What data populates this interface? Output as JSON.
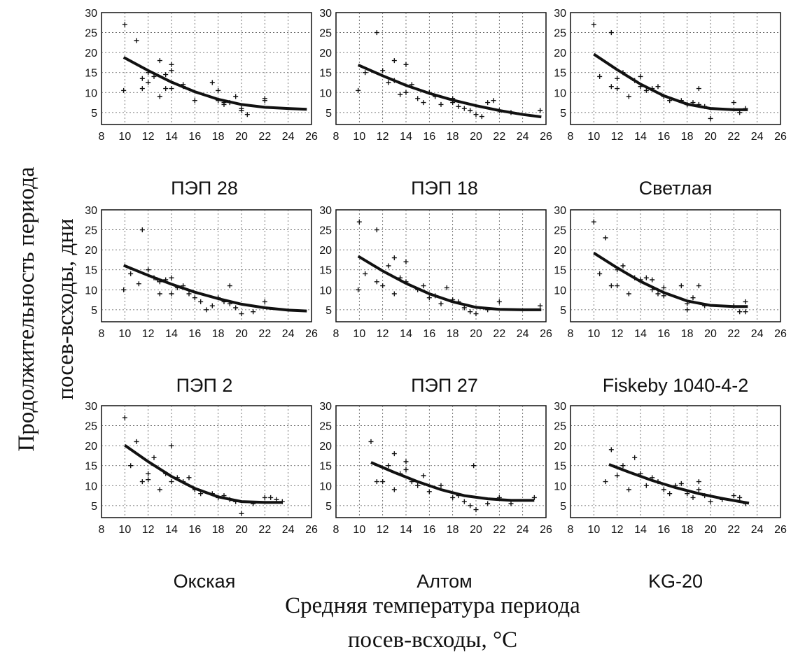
{
  "figure": {
    "xlabel_line1": "Средняя температура периода",
    "xlabel_line2": "посев-всходы, °C",
    "ylabel_line1": "Продолжительность периода",
    "ylabel_line2": "посев-всходы, дни"
  },
  "chart_data": [
    {
      "type": "scatter",
      "title": "ПЭП 28",
      "x_ticks": [
        8,
        10,
        12,
        14,
        16,
        18,
        20,
        22,
        24,
        26
      ],
      "y_ticks": [
        5,
        10,
        15,
        20,
        25,
        30
      ],
      "xlim": [
        8,
        26
      ],
      "ylim": [
        2,
        30
      ],
      "grid": true,
      "points": [
        [
          9.9,
          10.5
        ],
        [
          10,
          27
        ],
        [
          11,
          23
        ],
        [
          11.5,
          11
        ],
        [
          11.5,
          13.5
        ],
        [
          12,
          15
        ],
        [
          12,
          12.5
        ],
        [
          12.5,
          14
        ],
        [
          13,
          9
        ],
        [
          13,
          18
        ],
        [
          13.5,
          11
        ],
        [
          13.5,
          14.5
        ],
        [
          14,
          15.5
        ],
        [
          14,
          17
        ],
        [
          14,
          11
        ],
        [
          15,
          12
        ],
        [
          15,
          11.5
        ],
        [
          16,
          8
        ],
        [
          17.5,
          12.5
        ],
        [
          18,
          10.5
        ],
        [
          18,
          8
        ],
        [
          18.5,
          7.5
        ],
        [
          18.5,
          7
        ],
        [
          19,
          7.5
        ],
        [
          19.5,
          9
        ],
        [
          20,
          6
        ],
        [
          20,
          5.5
        ],
        [
          20.5,
          4.5
        ],
        [
          22,
          8.5
        ],
        [
          22,
          8
        ]
      ],
      "fit": [
        [
          9.9,
          18.8
        ],
        [
          12,
          15.5
        ],
        [
          14,
          12.6
        ],
        [
          16,
          10.2
        ],
        [
          18,
          8.3
        ],
        [
          20,
          7
        ],
        [
          22,
          6.3
        ],
        [
          24,
          6
        ],
        [
          25.6,
          5.8
        ]
      ]
    },
    {
      "type": "scatter",
      "title": "ПЭП 18",
      "x_ticks": [
        8,
        10,
        12,
        14,
        16,
        18,
        20,
        22,
        24,
        26
      ],
      "y_ticks": [
        5,
        10,
        15,
        20,
        25,
        30
      ],
      "xlim": [
        8,
        26
      ],
      "ylim": [
        2,
        30
      ],
      "grid": true,
      "points": [
        [
          9.9,
          10.5
        ],
        [
          10.5,
          15
        ],
        [
          11.5,
          25
        ],
        [
          12,
          15.5
        ],
        [
          12.5,
          12.5
        ],
        [
          13,
          13
        ],
        [
          13,
          18
        ],
        [
          13.5,
          9.5
        ],
        [
          14,
          17
        ],
        [
          14,
          10
        ],
        [
          14.5,
          12
        ],
        [
          15,
          8.5
        ],
        [
          15.5,
          7.5
        ],
        [
          16,
          10
        ],
        [
          16.5,
          9
        ],
        [
          17,
          7
        ],
        [
          18,
          8.5
        ],
        [
          18,
          7.5
        ],
        [
          18.5,
          6.5
        ],
        [
          19,
          6
        ],
        [
          19.5,
          5.5
        ],
        [
          20,
          4.5
        ],
        [
          20.5,
          4
        ],
        [
          21,
          7.5
        ],
        [
          21.5,
          8
        ],
        [
          22,
          5.5
        ],
        [
          23,
          5
        ],
        [
          25.5,
          5.5
        ]
      ],
      "fit": [
        [
          9.9,
          16.9
        ],
        [
          12,
          14.2
        ],
        [
          14,
          11.8
        ],
        [
          16,
          9.8
        ],
        [
          18,
          8.1
        ],
        [
          20,
          6.7
        ],
        [
          22,
          5.5
        ],
        [
          24,
          4.5
        ],
        [
          25.6,
          3.9
        ]
      ]
    },
    {
      "type": "scatter",
      "title": "Светлая",
      "x_ticks": [
        8,
        10,
        12,
        14,
        16,
        18,
        20,
        22,
        24,
        26
      ],
      "y_ticks": [
        5,
        10,
        15,
        20,
        25,
        30
      ],
      "xlim": [
        8,
        26
      ],
      "ylim": [
        2,
        30
      ],
      "grid": true,
      "points": [
        [
          10,
          27
        ],
        [
          10.5,
          14
        ],
        [
          11.5,
          25
        ],
        [
          11.5,
          11.5
        ],
        [
          12,
          11
        ],
        [
          12,
          13.5
        ],
        [
          12.5,
          15
        ],
        [
          13,
          9
        ],
        [
          13.5,
          13
        ],
        [
          14,
          14
        ],
        [
          14,
          11.5
        ],
        [
          14.5,
          10.5
        ],
        [
          15,
          11
        ],
        [
          15.5,
          11.5
        ],
        [
          16,
          9
        ],
        [
          16.5,
          8
        ],
        [
          17.5,
          8
        ],
        [
          18,
          7
        ],
        [
          18.5,
          7.5
        ],
        [
          19,
          11
        ],
        [
          19,
          7
        ],
        [
          19.5,
          6.5
        ],
        [
          20,
          3.5
        ],
        [
          22,
          7.5
        ],
        [
          22.5,
          5
        ],
        [
          23,
          6
        ]
      ],
      "fit": [
        [
          10,
          19.6
        ],
        [
          12,
          15.7
        ],
        [
          14,
          12.1
        ],
        [
          16,
          9.2
        ],
        [
          18,
          7.1
        ],
        [
          20,
          6
        ],
        [
          22,
          5.7
        ],
        [
          23.2,
          5.7
        ]
      ]
    },
    {
      "type": "scatter",
      "title": "ПЭП 2",
      "x_ticks": [
        8,
        10,
        12,
        14,
        16,
        18,
        20,
        22,
        24,
        26
      ],
      "y_ticks": [
        5,
        10,
        15,
        20,
        25,
        30
      ],
      "xlim": [
        8,
        26
      ],
      "ylim": [
        2,
        30
      ],
      "grid": true,
      "points": [
        [
          9.9,
          10
        ],
        [
          10.5,
          14
        ],
        [
          11.2,
          11.5
        ],
        [
          11.5,
          25
        ],
        [
          12,
          15
        ],
        [
          12.5,
          13
        ],
        [
          12.8,
          12.5
        ],
        [
          13,
          9
        ],
        [
          13,
          12
        ],
        [
          13.5,
          12.5
        ],
        [
          14,
          13
        ],
        [
          14,
          9
        ],
        [
          14.5,
          10.5
        ],
        [
          15,
          11
        ],
        [
          15.5,
          9
        ],
        [
          16,
          8
        ],
        [
          16.5,
          7
        ],
        [
          17,
          5
        ],
        [
          17.5,
          6
        ],
        [
          18,
          8
        ],
        [
          18.5,
          7
        ],
        [
          19,
          6.5
        ],
        [
          19,
          11
        ],
        [
          19.5,
          5.5
        ],
        [
          20,
          4
        ],
        [
          21,
          4.5
        ],
        [
          22,
          7
        ]
      ],
      "fit": [
        [
          9.9,
          16.1
        ],
        [
          12,
          13.6
        ],
        [
          14,
          11.4
        ],
        [
          16,
          9.4
        ],
        [
          18,
          7.8
        ],
        [
          20,
          6.4
        ],
        [
          22,
          5.5
        ],
        [
          24,
          4.9
        ],
        [
          25.6,
          4.7
        ]
      ]
    },
    {
      "type": "scatter",
      "title": "ПЭП 27",
      "x_ticks": [
        8,
        10,
        12,
        14,
        16,
        18,
        20,
        22,
        24,
        26
      ],
      "y_ticks": [
        5,
        10,
        15,
        20,
        25,
        30
      ],
      "xlim": [
        8,
        26
      ],
      "ylim": [
        2,
        30
      ],
      "grid": true,
      "points": [
        [
          9.9,
          10
        ],
        [
          10,
          27
        ],
        [
          10.5,
          14
        ],
        [
          11.5,
          25
        ],
        [
          11.5,
          12
        ],
        [
          12,
          11
        ],
        [
          12.5,
          16
        ],
        [
          13,
          18
        ],
        [
          13,
          9
        ],
        [
          13.5,
          13
        ],
        [
          14,
          17
        ],
        [
          14,
          12
        ],
        [
          15,
          10
        ],
        [
          15.5,
          11
        ],
        [
          16,
          8
        ],
        [
          16.5,
          8.5
        ],
        [
          17,
          6.5
        ],
        [
          17.5,
          10.5
        ],
        [
          18,
          7.5
        ],
        [
          18.5,
          7
        ],
        [
          19,
          5.5
        ],
        [
          19.5,
          4.5
        ],
        [
          20,
          4
        ],
        [
          21,
          5
        ],
        [
          22,
          7
        ],
        [
          25.5,
          6
        ]
      ],
      "fit": [
        [
          9.9,
          18.4
        ],
        [
          12,
          14.7
        ],
        [
          14,
          11.6
        ],
        [
          16,
          9
        ],
        [
          18,
          7
        ],
        [
          20,
          5.6
        ],
        [
          22,
          5.1
        ],
        [
          24,
          5
        ],
        [
          25.6,
          5
        ]
      ]
    },
    {
      "type": "scatter",
      "title": "Fiskeby 1040-4-2",
      "x_ticks": [
        8,
        10,
        12,
        14,
        16,
        18,
        20,
        22,
        24,
        26
      ],
      "y_ticks": [
        5,
        10,
        15,
        20,
        25,
        30
      ],
      "xlim": [
        8,
        26
      ],
      "ylim": [
        2,
        30
      ],
      "grid": true,
      "points": [
        [
          10,
          27
        ],
        [
          10.5,
          14
        ],
        [
          11,
          23
        ],
        [
          11.5,
          11
        ],
        [
          12,
          11
        ],
        [
          12,
          15
        ],
        [
          12.5,
          16
        ],
        [
          13,
          9
        ],
        [
          13.5,
          13
        ],
        [
          14,
          12.5
        ],
        [
          14.5,
          13
        ],
        [
          15,
          10
        ],
        [
          15,
          12.5
        ],
        [
          15.5,
          9
        ],
        [
          16,
          8.5
        ],
        [
          16,
          10.5
        ],
        [
          17.5,
          11
        ],
        [
          18,
          5
        ],
        [
          18,
          6.5
        ],
        [
          18.5,
          8
        ],
        [
          19,
          11
        ],
        [
          19.5,
          6
        ],
        [
          22,
          6
        ],
        [
          22.5,
          4.5
        ],
        [
          23,
          4.5
        ],
        [
          23,
          7
        ]
      ],
      "fit": [
        [
          10,
          19.2
        ],
        [
          12,
          15.5
        ],
        [
          14,
          12.1
        ],
        [
          16,
          9.3
        ],
        [
          18,
          7.2
        ],
        [
          20,
          6.1
        ],
        [
          22,
          5.8
        ],
        [
          23.2,
          5.8
        ]
      ]
    },
    {
      "type": "scatter",
      "title": "Окская",
      "x_ticks": [
        8,
        10,
        12,
        14,
        16,
        18,
        20,
        22,
        24,
        26
      ],
      "y_ticks": [
        5,
        10,
        15,
        20,
        25,
        30
      ],
      "xlim": [
        8,
        26
      ],
      "ylim": [
        2,
        30
      ],
      "grid": true,
      "points": [
        [
          10,
          27
        ],
        [
          10.5,
          15
        ],
        [
          11,
          21
        ],
        [
          11.5,
          11
        ],
        [
          12,
          11.5
        ],
        [
          12,
          13
        ],
        [
          12.5,
          17
        ],
        [
          13,
          9
        ],
        [
          13.5,
          13
        ],
        [
          14,
          20
        ],
        [
          14,
          11
        ],
        [
          14.5,
          12
        ],
        [
          15,
          11
        ],
        [
          15.5,
          12
        ],
        [
          16,
          9
        ],
        [
          16.5,
          8
        ],
        [
          17.5,
          8
        ],
        [
          18,
          7
        ],
        [
          18.5,
          7.5
        ],
        [
          19,
          6.5
        ],
        [
          19.5,
          6
        ],
        [
          20,
          3
        ],
        [
          21,
          5.5
        ],
        [
          22,
          7
        ],
        [
          22.5,
          7
        ],
        [
          23,
          6.5
        ],
        [
          23.5,
          6
        ]
      ],
      "fit": [
        [
          10,
          20.1
        ],
        [
          12,
          16
        ],
        [
          14,
          12.3
        ],
        [
          16,
          9.3
        ],
        [
          18,
          7.2
        ],
        [
          20,
          6
        ],
        [
          22,
          5.8
        ],
        [
          23.5,
          5.8
        ]
      ]
    },
    {
      "type": "scatter",
      "title": "Алтом",
      "x_ticks": [
        8,
        10,
        12,
        14,
        16,
        18,
        20,
        22,
        24,
        26
      ],
      "y_ticks": [
        5,
        10,
        15,
        20,
        25,
        30
      ],
      "xlim": [
        8,
        26
      ],
      "ylim": [
        2,
        30
      ],
      "grid": true,
      "points": [
        [
          11,
          21
        ],
        [
          11.5,
          11
        ],
        [
          12,
          11
        ],
        [
          12.5,
          15
        ],
        [
          13,
          9
        ],
        [
          13,
          18
        ],
        [
          13.5,
          13
        ],
        [
          14,
          14
        ],
        [
          14,
          16
        ],
        [
          14.5,
          11
        ],
        [
          15,
          10
        ],
        [
          15.5,
          12.5
        ],
        [
          16,
          8.5
        ],
        [
          17,
          10
        ],
        [
          18,
          7
        ],
        [
          18.5,
          7.5
        ],
        [
          19,
          6
        ],
        [
          19.5,
          5
        ],
        [
          20,
          4
        ],
        [
          19.8,
          15
        ],
        [
          21,
          5.5
        ],
        [
          22,
          7
        ],
        [
          23,
          5.5
        ],
        [
          25,
          7
        ]
      ],
      "fit": [
        [
          11,
          15.8
        ],
        [
          13,
          13.3
        ],
        [
          15,
          11
        ],
        [
          17,
          9
        ],
        [
          19,
          7.5
        ],
        [
          21,
          6.7
        ],
        [
          23,
          6.3
        ],
        [
          25,
          6.3
        ]
      ]
    },
    {
      "type": "scatter",
      "title": "KG-20",
      "x_ticks": [
        8,
        10,
        12,
        14,
        16,
        18,
        20,
        22,
        24,
        26
      ],
      "y_ticks": [
        5,
        10,
        15,
        20,
        25,
        30
      ],
      "xlim": [
        8,
        26
      ],
      "ylim": [
        2,
        30
      ],
      "grid": true,
      "points": [
        [
          11,
          11
        ],
        [
          11.5,
          19
        ],
        [
          12,
          12.5
        ],
        [
          12.5,
          15
        ],
        [
          13,
          9
        ],
        [
          13.5,
          17
        ],
        [
          14,
          13
        ],
        [
          14.5,
          10
        ],
        [
          15,
          12
        ],
        [
          15.5,
          11
        ],
        [
          16,
          9
        ],
        [
          16.5,
          8
        ],
        [
          17,
          10
        ],
        [
          17.5,
          10.5
        ],
        [
          18,
          8
        ],
        [
          18.5,
          7
        ],
        [
          19,
          9
        ],
        [
          19,
          11
        ],
        [
          19.5,
          7.5
        ],
        [
          20,
          6
        ],
        [
          21,
          6.5
        ],
        [
          22,
          7.5
        ],
        [
          22.5,
          7
        ],
        [
          23,
          5.5
        ]
      ],
      "fit": [
        [
          11.3,
          15.3
        ],
        [
          13,
          13.4
        ],
        [
          15,
          11.3
        ],
        [
          17,
          9.5
        ],
        [
          19,
          8
        ],
        [
          21,
          6.8
        ],
        [
          23.3,
          5.6
        ]
      ]
    }
  ]
}
